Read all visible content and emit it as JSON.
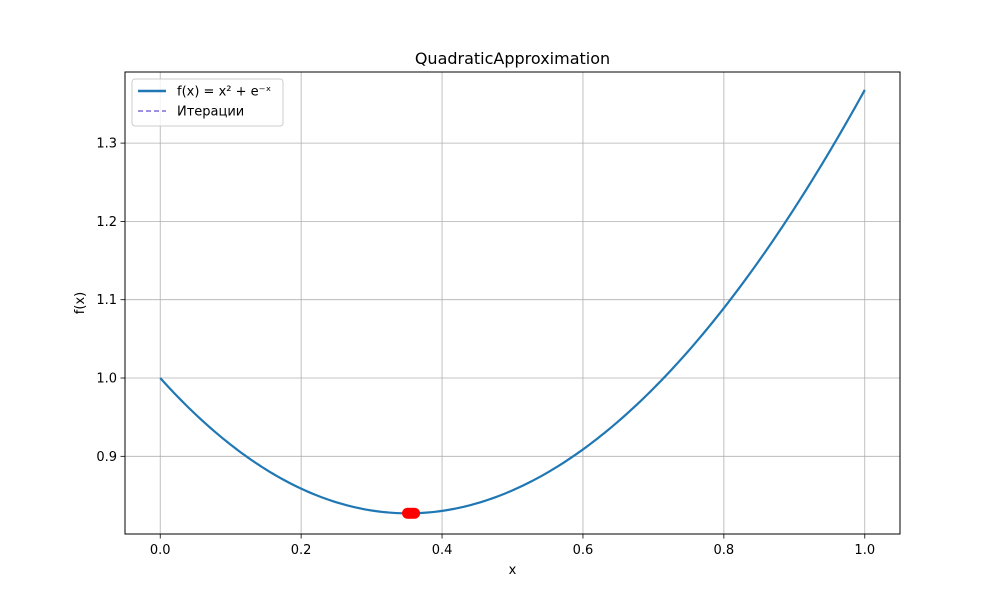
{
  "chart_data": {
    "type": "line",
    "title": "QuadraticApproximation",
    "xlabel": "x",
    "ylabel": "f(x)",
    "xlim": [
      -0.05,
      1.05
    ],
    "ylim": [
      0.8008,
      1.3908
    ],
    "xticks": [
      0.0,
      0.2,
      0.4,
      0.6,
      0.8,
      1.0
    ],
    "yticks": [
      0.9,
      1.0,
      1.1,
      1.2,
      1.3
    ],
    "xtick_labels": [
      "0.0",
      "0.2",
      "0.4",
      "0.6",
      "0.8",
      "1.0"
    ],
    "ytick_labels": [
      "0.9",
      "1.0",
      "1.1",
      "1.2",
      "1.3"
    ],
    "grid": true,
    "legend_position": "upper-left",
    "series": [
      {
        "name": "f(x) = x² + e⁻ˣ",
        "style": "solid",
        "color": "#1f77b4",
        "function": "x^2 + exp(-x)",
        "x_range": [
          0,
          1
        ],
        "x": [
          0.0,
          0.1,
          0.2,
          0.3,
          0.35,
          0.4,
          0.5,
          0.6,
          0.7,
          0.8,
          0.9,
          1.0
        ],
        "y": [
          1.0,
          0.9148,
          0.8587,
          0.8308,
          0.8272,
          0.8303,
          0.8565,
          0.9088,
          0.9866,
          1.0893,
          1.2166,
          1.3679
        ]
      },
      {
        "name": "Итерации",
        "style": "dashed",
        "color": "#7b6fd6",
        "x": [],
        "y": []
      }
    ],
    "points": {
      "color": "#ff0000",
      "x": [
        0.351,
        0.353,
        0.355,
        0.357,
        0.359,
        0.361
      ],
      "y": [
        0.8273,
        0.8273,
        0.8273,
        0.8273,
        0.8273,
        0.8273
      ]
    }
  }
}
